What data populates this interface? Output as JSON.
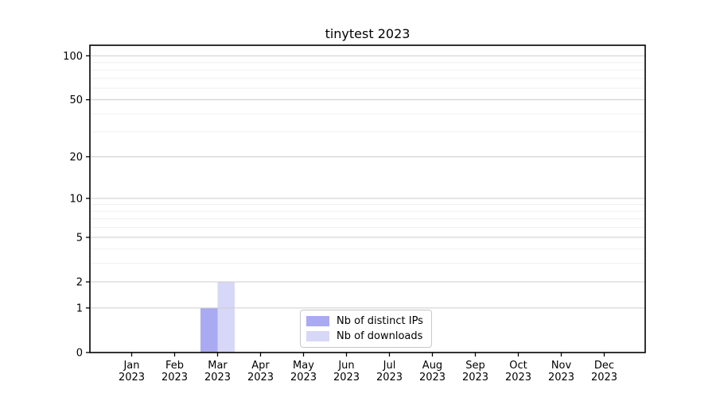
{
  "chart_data": {
    "type": "bar",
    "title": "tinytest 2023",
    "categories": [
      "Jan",
      "Feb",
      "Mar",
      "Apr",
      "May",
      "Jun",
      "Jul",
      "Aug",
      "Sep",
      "Oct",
      "Nov",
      "Dec"
    ],
    "year_label": "2023",
    "series": [
      {
        "name": "Nb of distinct IPs",
        "color": "#aaaaf2",
        "values": [
          0,
          0,
          1,
          0,
          0,
          0,
          0,
          0,
          0,
          0,
          0,
          0
        ]
      },
      {
        "name": "Nb of downloads",
        "color": "#d7d7f8",
        "values": [
          0,
          0,
          2,
          0,
          0,
          0,
          0,
          0,
          0,
          0,
          0,
          0
        ]
      }
    ],
    "yscale": "log(v+1)",
    "yticks": [
      0,
      1,
      2,
      5,
      10,
      20,
      50,
      100
    ],
    "ytick_labels": [
      "0",
      "1",
      "2",
      "5",
      "10",
      "20",
      "50",
      "100"
    ],
    "minor_gridlines": [
      3,
      4,
      6,
      7,
      8,
      9,
      30,
      40,
      60,
      70,
      80,
      90
    ],
    "ylim": [
      0,
      118
    ],
    "grid": "horizontal",
    "legend_position": "lower center",
    "colors": {
      "axis": "#000000",
      "text": "#000000",
      "major_grid": "#cccccc",
      "minor_grid": "#efefef",
      "legend_border": "#c8c8c8",
      "background": "#ffffff"
    }
  }
}
